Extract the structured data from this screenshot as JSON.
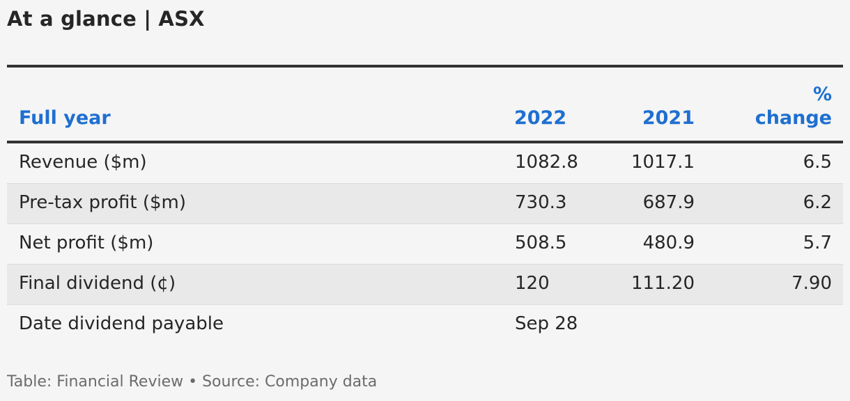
{
  "title": "At a glance | ASX",
  "table": {
    "headers": {
      "label": "Full year",
      "col_2022": "2022",
      "col_2021": "2021",
      "change_line1": "%",
      "change_line2": "change"
    },
    "rows": [
      {
        "label": "Revenue ($m)",
        "v2022": "1082.8",
        "v2021": "1017.1",
        "change": "6.5"
      },
      {
        "label": "Pre-tax profit ($m)",
        "v2022": "730.3",
        "v2021": "687.9",
        "change": "6.2"
      },
      {
        "label": "Net profit ($m)",
        "v2022": "508.5",
        "v2021": "480.9",
        "change": "5.7"
      },
      {
        "label": "Final dividend (¢)",
        "v2022": "120",
        "v2021": "111.20",
        "change": "7.90"
      },
      {
        "label": "Date dividend payable",
        "v2022": "Sep 28",
        "v2021": "",
        "change": ""
      }
    ]
  },
  "footer": "Table: Financial Review • Source: Company data"
}
